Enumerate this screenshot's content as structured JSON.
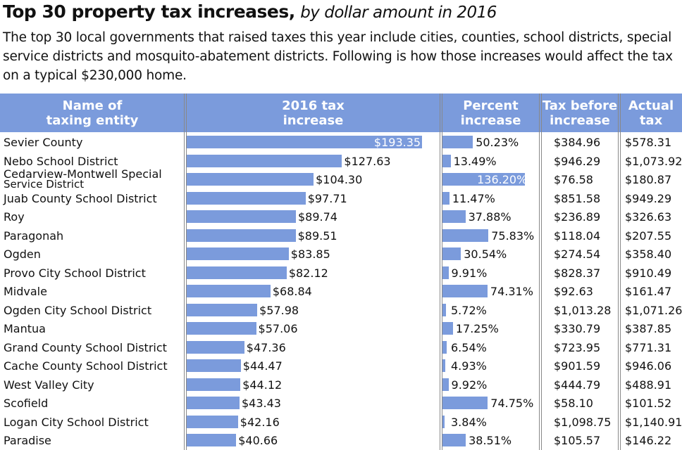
{
  "title": {
    "bold": "Top 30 property tax increases,",
    "italic": "by dollar amount in 2016"
  },
  "subtitle": "The top 30 local governments that raised taxes this year include cities, counties, school districts, special service districts and mosquito-abatement districts. Following is how those increases would affect the tax on a typical $230,000 home.",
  "headers": [
    "Name of\ntaxing entity",
    "2016 tax\nincrease",
    "Percent\nincrease",
    "Tax before\nincrease",
    "Actual\ntax"
  ],
  "colors": {
    "bar": "#7b9bdc",
    "header": "#7b9bdc"
  },
  "chart_data": {
    "type": "table",
    "columns": [
      "Name of taxing entity",
      "2016 tax increase",
      "Percent increase",
      "Tax before increase",
      "Actual tax"
    ],
    "rows": [
      [
        "Sevier County",
        193.35,
        50.23,
        "$384.96",
        "$578.31",
        "$193.35",
        "50.23%"
      ],
      [
        "Nebo School District",
        127.63,
        13.49,
        "$946.29",
        "$1,073.92",
        "$127.63",
        "13.49%"
      ],
      [
        "Cedarview-Montwell Special|Service District",
        104.3,
        136.2,
        "$76.58",
        "$180.87",
        "$104.30",
        "136.20%"
      ],
      [
        "Juab County School District",
        97.71,
        11.47,
        "$851.58",
        "$949.29",
        "$97.71",
        "11.47%"
      ],
      [
        "Roy",
        89.74,
        37.88,
        "$236.89",
        "$326.63",
        "$89.74",
        "37.88%"
      ],
      [
        "Paragonah",
        89.51,
        75.83,
        "$118.04",
        "$207.55",
        "$89.51",
        "75.83%"
      ],
      [
        "Ogden",
        83.85,
        30.54,
        "$274.54",
        "$358.40",
        "$83.85",
        "30.54%"
      ],
      [
        "Provo City School District",
        82.12,
        9.91,
        "$828.37",
        "$910.49",
        "$82.12",
        "9.91%"
      ],
      [
        "Midvale",
        68.84,
        74.31,
        "$92.63",
        "$161.47",
        "$68.84",
        "74.31%"
      ],
      [
        "Ogden City School District",
        57.98,
        5.72,
        "$1,013.28",
        "$1,071.26",
        "$57.98",
        "5.72%"
      ],
      [
        "Mantua",
        57.06,
        17.25,
        "$330.79",
        "$387.85",
        "$57.06",
        "17.25%"
      ],
      [
        "Grand County School District",
        47.36,
        6.54,
        "$723.95",
        "$771.31",
        "$47.36",
        "6.54%"
      ],
      [
        "Cache County School District",
        44.47,
        4.93,
        "$901.59",
        "$946.06",
        "$44.47",
        "4.93%"
      ],
      [
        "West Valley City",
        44.12,
        9.92,
        "$444.79",
        "$488.91",
        "$44.12",
        "9.92%"
      ],
      [
        "Scofield",
        43.43,
        74.75,
        "$58.10",
        "$101.52",
        "$43.43",
        "74.75%"
      ],
      [
        "Logan City School District",
        42.16,
        3.84,
        "$1,098.75",
        "$1,140.91",
        "$42.16",
        "3.84%"
      ],
      [
        "Paradise",
        40.66,
        38.51,
        "$105.57",
        "$146.22",
        "$40.66",
        "38.51%"
      ]
    ]
  }
}
